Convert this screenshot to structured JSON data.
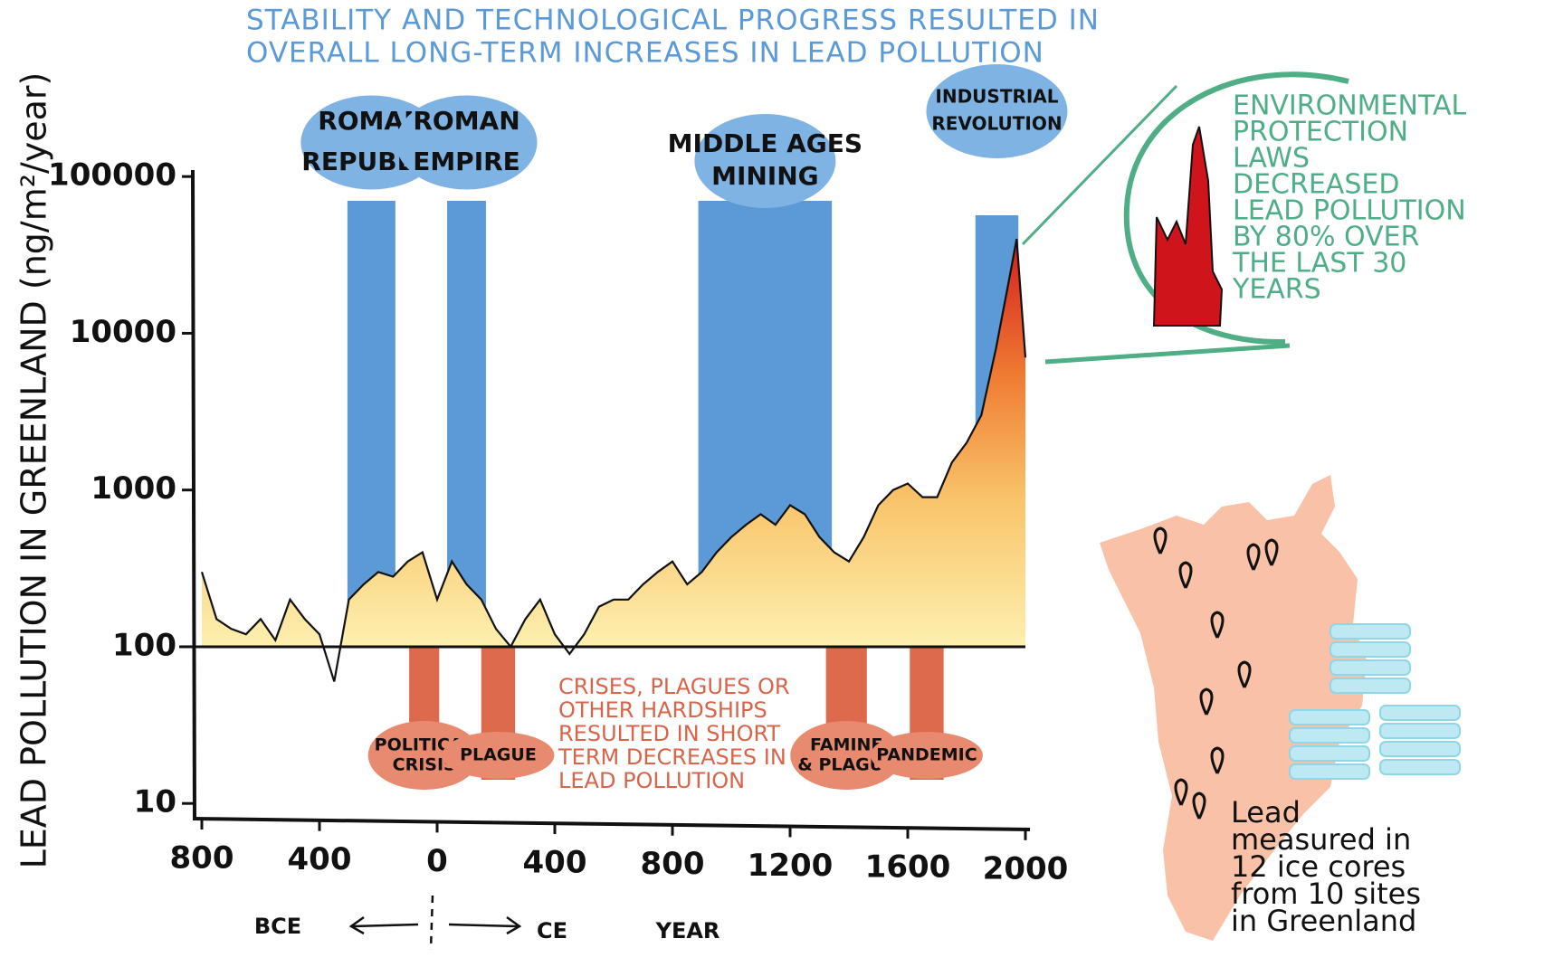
{
  "chart_data": {
    "type": "area",
    "title_lines": [
      "STABILITY AND TECHNOLOGICAL PROGRESS RESULTED IN",
      "OVERALL LONG-TERM INCREASES IN LEAD POLLUTION"
    ],
    "y_label": "LEAD POLLUTION IN GREENLAND (ng/m²/year)",
    "x_label": "YEAR",
    "bce_label": "BCE",
    "ce_label": "CE",
    "log_y": true,
    "area_baseline": 100,
    "x": [
      -800,
      -750,
      -700,
      -650,
      -600,
      -550,
      -500,
      -450,
      -400,
      -350,
      -300,
      -250,
      -200,
      -150,
      -100,
      -50,
      0,
      50,
      100,
      150,
      200,
      250,
      300,
      350,
      400,
      450,
      500,
      550,
      600,
      650,
      700,
      750,
      800,
      850,
      900,
      950,
      1000,
      1050,
      1100,
      1150,
      1200,
      1250,
      1300,
      1350,
      1400,
      1450,
      1500,
      1550,
      1600,
      1650,
      1700,
      1750,
      1800,
      1850,
      1900,
      1950,
      1970,
      2000
    ],
    "values": [
      300,
      150,
      130,
      120,
      150,
      110,
      200,
      150,
      120,
      60,
      200,
      250,
      300,
      280,
      350,
      400,
      200,
      350,
      250,
      200,
      130,
      100,
      150,
      200,
      120,
      90,
      120,
      180,
      200,
      200,
      250,
      300,
      350,
      250,
      300,
      400,
      500,
      600,
      700,
      600,
      800,
      700,
      500,
      400,
      350,
      500,
      800,
      1000,
      1100,
      900,
      900,
      1500,
      2000,
      3000,
      8000,
      25000,
      40000,
      7000
    ],
    "xlim": [
      -800,
      2000
    ],
    "ylim": [
      8,
      110000
    ],
    "xticks": [
      {
        "value": -800,
        "label": "800"
      },
      {
        "value": -400,
        "label": "400"
      },
      0,
      400,
      800,
      1200,
      1600,
      2000
    ],
    "yticks": [
      10,
      100,
      1000,
      10000,
      100000
    ],
    "stable_periods": [
      {
        "label": [
          "ROMAN",
          "REPUBLIC"
        ],
        "start": -305,
        "end": -142
      },
      {
        "label": [
          "ROMAN",
          "EMPIRE"
        ],
        "start": 34,
        "end": 166
      },
      {
        "label": [
          "MIDDLE AGES",
          "MINING"
        ],
        "start": 888,
        "end": 1342
      },
      {
        "label": [
          "INDUSTRIAL",
          "REVOLUTION"
        ],
        "start": 1830,
        "end": 1976
      }
    ],
    "crisis_periods": [
      {
        "label": [
          "POLITICAL",
          "CRISIS"
        ],
        "start": -95,
        "end": 7
      },
      {
        "label": [
          "PLAGUE"
        ],
        "start": 150,
        "end": 265
      },
      {
        "label": [
          "FAMINE",
          "& PLAGUE"
        ],
        "start": 1322,
        "end": 1461
      },
      {
        "label": [
          "PANDEMIC"
        ],
        "start": 1607,
        "end": 1722
      }
    ],
    "crisis_note": [
      "CRISES, PLAGUES OR",
      "OTHER HARDSHIPS",
      "RESULTED IN SHORT",
      "TERM DECREASES IN",
      "LEAD POLLUTION"
    ],
    "inset_note": [
      "ENVIRONMENTAL",
      "PROTECTION",
      "LAWS",
      "DECREASED",
      "LEAD POLLUTION",
      "BY 80% OVER",
      "THE LAST 30",
      "YEARS"
    ],
    "map_note": [
      "Lead",
      "measured in",
      "12 ice cores",
      "from 10 sites",
      "in Greenland"
    ]
  }
}
